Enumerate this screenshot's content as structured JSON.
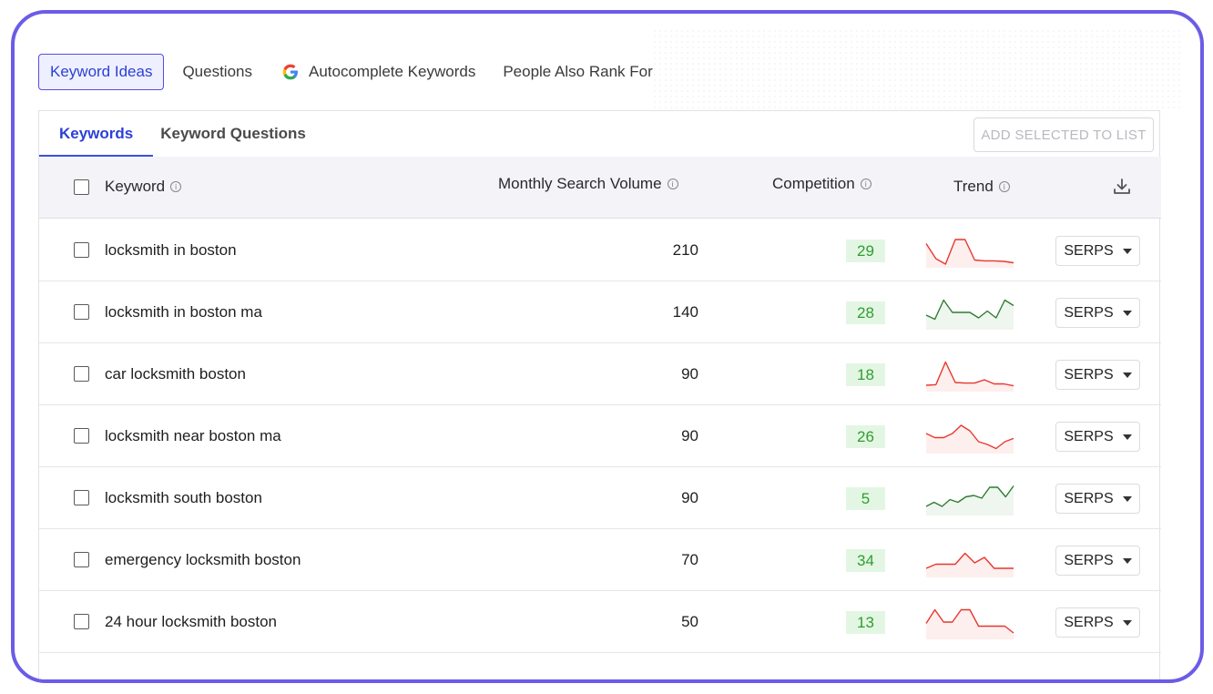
{
  "top_tabs": [
    {
      "label": "Keyword Ideas",
      "active": true
    },
    {
      "label": "Questions",
      "active": false
    },
    {
      "label": "Autocomplete Keywords",
      "active": false,
      "icon": "google-icon"
    },
    {
      "label": "People Also Rank For",
      "active": false
    }
  ],
  "sub_tabs": [
    {
      "label": "Keywords",
      "active": true
    },
    {
      "label": "Keyword Questions",
      "active": false
    }
  ],
  "add_selected_label": "ADD SELECTED TO LIST",
  "columns": {
    "keyword": "Keyword",
    "volume": "Monthly Search Volume",
    "competition": "Competition",
    "trend": "Trend",
    "download_icon": "download-icon"
  },
  "rows": [
    {
      "keyword": "locksmith in boston",
      "volume": "210",
      "competition": "29",
      "serps": "SERPS",
      "trend_color": "#e8372c",
      "trend": [
        0.75,
        0.2,
        0.0,
        0.9,
        0.9,
        0.15,
        0.12,
        0.12,
        0.1,
        0.05
      ]
    },
    {
      "keyword": "locksmith in boston ma",
      "volume": "140",
      "competition": "28",
      "serps": "SERPS",
      "trend_color": "#2e7d32",
      "trend": [
        0.4,
        0.25,
        0.95,
        0.5,
        0.5,
        0.5,
        0.3,
        0.55,
        0.3,
        0.95,
        0.75
      ]
    },
    {
      "keyword": "car locksmith boston",
      "volume": "90",
      "competition": "18",
      "serps": "SERPS",
      "trend_color": "#e8372c",
      "trend": [
        0.1,
        0.12,
        0.95,
        0.2,
        0.18,
        0.18,
        0.3,
        0.15,
        0.15,
        0.08
      ]
    },
    {
      "keyword": "locksmith near boston ma",
      "volume": "90",
      "competition": "26",
      "serps": "SERPS",
      "trend_color": "#e8372c",
      "trend": [
        0.6,
        0.45,
        0.45,
        0.6,
        0.9,
        0.7,
        0.3,
        0.2,
        0.05,
        0.3,
        0.42
      ]
    },
    {
      "keyword": "locksmith south boston",
      "volume": "90",
      "competition": "5",
      "serps": "SERPS",
      "trend_color": "#2e7d32",
      "trend": [
        0.2,
        0.35,
        0.2,
        0.45,
        0.35,
        0.55,
        0.6,
        0.5,
        0.9,
        0.9,
        0.55,
        0.95
      ]
    },
    {
      "keyword": "emergency locksmith boston",
      "volume": "70",
      "competition": "34",
      "serps": "SERPS",
      "trend_color": "#e8372c",
      "trend": [
        0.2,
        0.35,
        0.35,
        0.35,
        0.75,
        0.4,
        0.6,
        0.2,
        0.2,
        0.2
      ]
    },
    {
      "keyword": "24 hour locksmith boston",
      "volume": "50",
      "competition": "13",
      "serps": "SERPS",
      "trend_color": "#e8372c",
      "trend": [
        0.45,
        0.95,
        0.5,
        0.5,
        0.95,
        0.95,
        0.35,
        0.35,
        0.35,
        0.35,
        0.1
      ]
    }
  ]
}
